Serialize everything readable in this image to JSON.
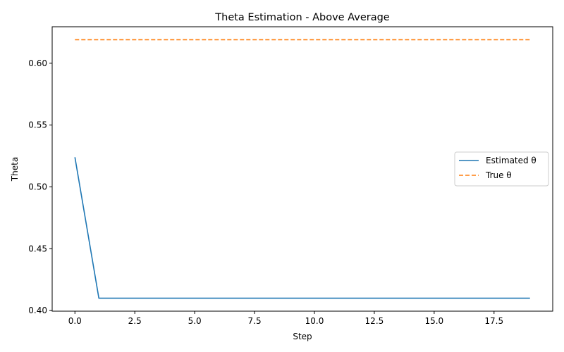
{
  "chart_data": {
    "type": "line",
    "title": "Theta Estimation - Above Average",
    "xlabel": "Step",
    "ylabel": "Theta",
    "xlim": [
      -0.95,
      19.95
    ],
    "ylim": [
      0.3995,
      0.6295
    ],
    "xticks": [
      0.0,
      2.5,
      5.0,
      7.5,
      10.0,
      12.5,
      15.0,
      17.5
    ],
    "xtick_labels": [
      "0.0",
      "2.5",
      "5.0",
      "7.5",
      "10.0",
      "12.5",
      "15.0",
      "17.5"
    ],
    "yticks": [
      0.4,
      0.45,
      0.5,
      0.55,
      0.6
    ],
    "ytick_labels": [
      "0.40",
      "0.45",
      "0.50",
      "0.55",
      "0.60"
    ],
    "grid": false,
    "legend_position": "center-right",
    "series": [
      {
        "name": "Estimated θ",
        "color": "#1f77b4",
        "dash": "solid",
        "x": [
          0,
          1,
          2,
          3,
          4,
          5,
          6,
          7,
          8,
          9,
          10,
          11,
          12,
          13,
          14,
          15,
          16,
          17,
          18,
          19
        ],
        "values": [
          0.524,
          0.41,
          0.41,
          0.41,
          0.41,
          0.41,
          0.41,
          0.41,
          0.41,
          0.41,
          0.41,
          0.41,
          0.41,
          0.41,
          0.41,
          0.41,
          0.41,
          0.41,
          0.41,
          0.41
        ]
      },
      {
        "name": "True θ",
        "color": "#ff7f0e",
        "dash": "dashed",
        "x": [
          0,
          1,
          2,
          3,
          4,
          5,
          6,
          7,
          8,
          9,
          10,
          11,
          12,
          13,
          14,
          15,
          16,
          17,
          18,
          19
        ],
        "values": [
          0.619,
          0.619,
          0.619,
          0.619,
          0.619,
          0.619,
          0.619,
          0.619,
          0.619,
          0.619,
          0.619,
          0.619,
          0.619,
          0.619,
          0.619,
          0.619,
          0.619,
          0.619,
          0.619,
          0.619
        ]
      }
    ]
  }
}
